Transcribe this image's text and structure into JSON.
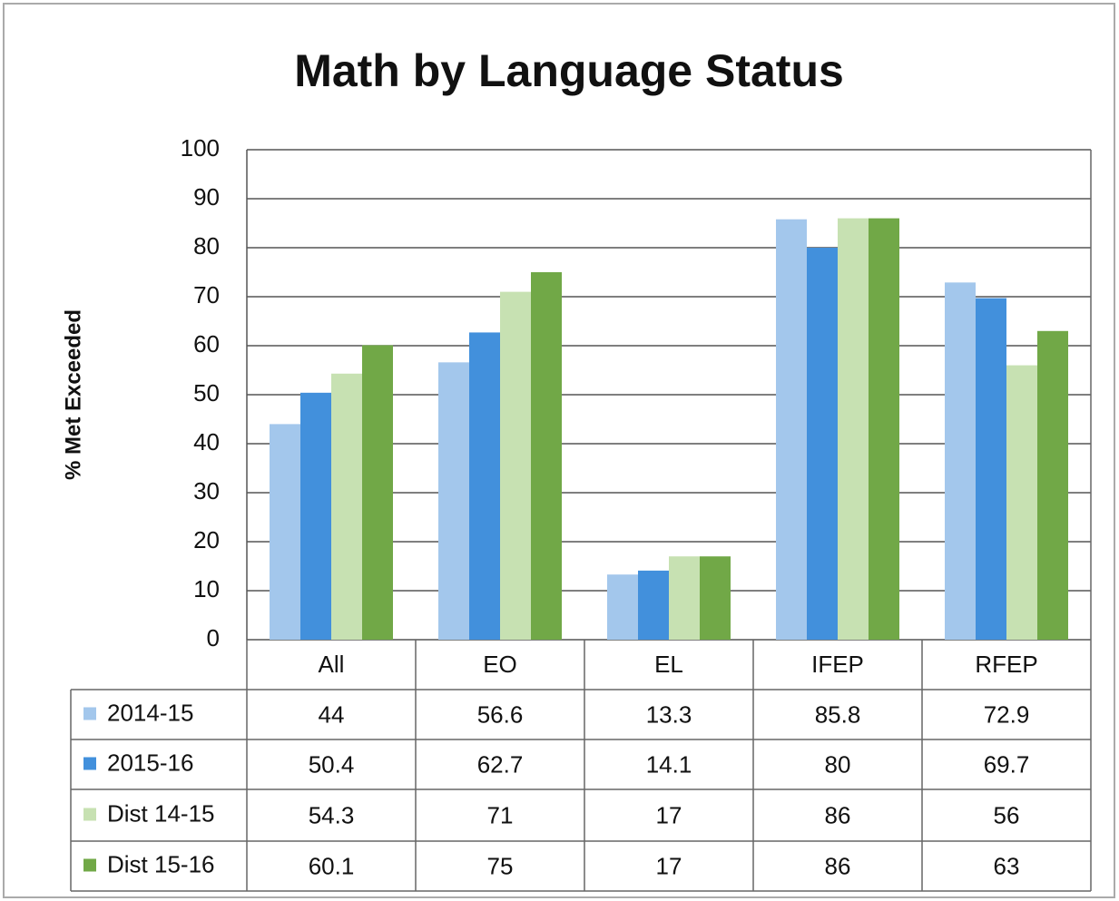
{
  "chart_data": {
    "type": "bar",
    "title": "Math by Language Status",
    "y_label": "% Met Exceeded",
    "categories": [
      "All",
      "EO",
      "EL",
      "IFEP",
      "RFEP"
    ],
    "series": [
      {
        "name": "2014-15",
        "color": "#a3c7ec",
        "values": [
          44,
          56.6,
          13.3,
          85.8,
          72.9
        ]
      },
      {
        "name": "2015-16",
        "color": "#4290dc",
        "values": [
          50.4,
          62.7,
          14.1,
          80,
          69.7
        ]
      },
      {
        "name": "Dist 14-15",
        "color": "#c7e1b2",
        "values": [
          54.3,
          71,
          17,
          86,
          56
        ]
      },
      {
        "name": "Dist 15-16",
        "color": "#71a847",
        "values": [
          60.1,
          75,
          17,
          86,
          63
        ]
      }
    ],
    "ylim": [
      0,
      100
    ],
    "yticks": [
      0,
      10,
      20,
      30,
      40,
      50,
      60,
      70,
      80,
      90,
      100
    ],
    "grid": true,
    "data_table": true
  }
}
